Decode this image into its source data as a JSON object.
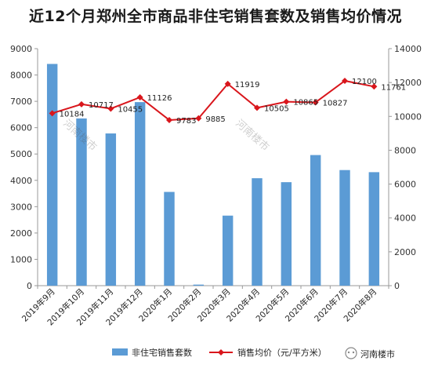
{
  "chart_data": {
    "type": "bar+line",
    "title": "近12个月郑州全市商品非住宅销售套数及销售均价情况",
    "categories": [
      "2019年9月",
      "2019年10月",
      "2019年11月",
      "2019年12月",
      "2020年1月",
      "2020年2月",
      "2020年3月",
      "2020年4月",
      "2020年5月",
      "2020年6月",
      "2020年7月",
      "2020年8月"
    ],
    "series": [
      {
        "name": "非住宅销售套数",
        "type": "bar",
        "axis": "left",
        "values": [
          8420,
          6350,
          5780,
          6970,
          3560,
          40,
          2660,
          4080,
          3930,
          4960,
          4390,
          4310
        ]
      },
      {
        "name": "销售均价（元/平方米）",
        "type": "line",
        "axis": "right",
        "values": [
          10184,
          10717,
          10455,
          11126,
          9783,
          9885,
          11919,
          10505,
          10865,
          10827,
          12100,
          11761
        ]
      }
    ],
    "left_ylim": [
      0,
      9000
    ],
    "left_yticks": [
      "0",
      "1000",
      "2000",
      "3000",
      "4000",
      "5000",
      "6000",
      "7000",
      "8000",
      "9000"
    ],
    "right_ylim": [
      0,
      14000
    ],
    "right_yticks": [
      "0",
      "2000",
      "4000",
      "6000",
      "8000",
      "10000",
      "12000",
      "14000"
    ],
    "grid": false,
    "legend_position": "bottom",
    "colors": {
      "bar": "#5b9bd5",
      "line": "#d9161c",
      "axis": "#999999"
    }
  },
  "watermark": {
    "text": "河南楼市"
  }
}
